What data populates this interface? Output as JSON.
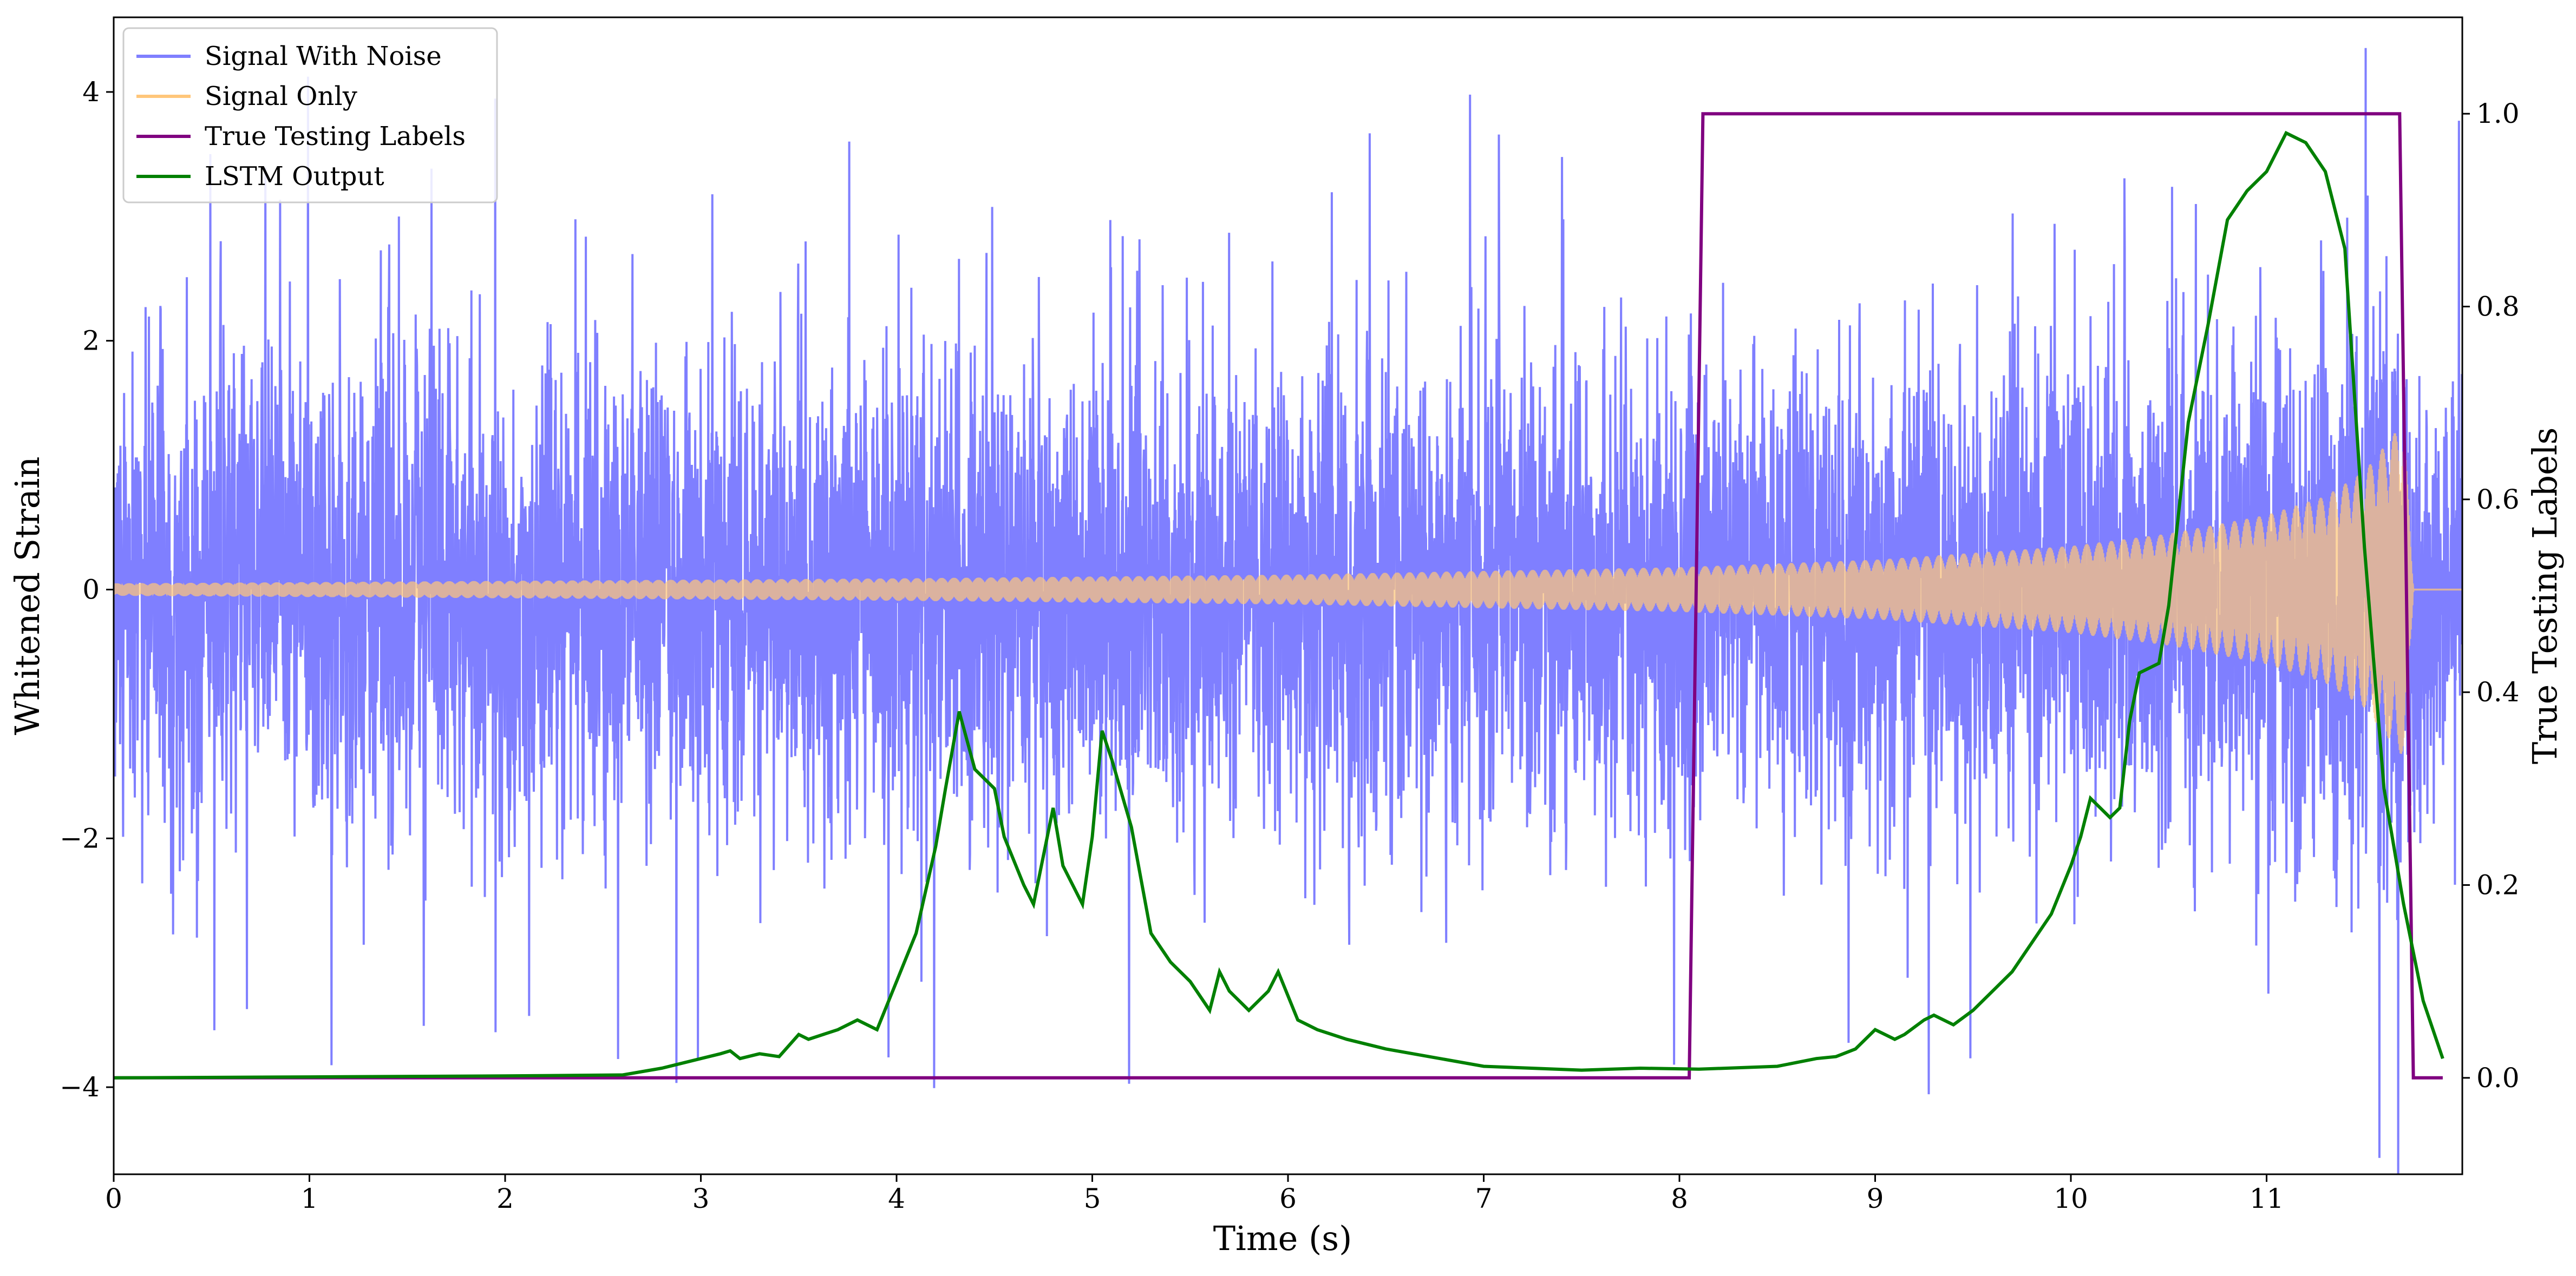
{
  "chart_data": {
    "type": "line",
    "xlabel": "Time (s)",
    "ylabel": "Whitened Strain",
    "ylabel_right": "True Testing Labels",
    "xlim": [
      0,
      12
    ],
    "ylim": [
      -4.7,
      4.6
    ],
    "ylim_right": [
      -0.1,
      1.1
    ],
    "x_ticks": [
      0,
      1,
      2,
      3,
      4,
      5,
      6,
      7,
      8,
      9,
      10,
      11
    ],
    "y_ticks": [
      -4,
      -2,
      0,
      2,
      4
    ],
    "y_tick_labels": [
      "−4",
      "−2",
      "0",
      "2",
      "4"
    ],
    "y_ticks_right": [
      0.0,
      0.2,
      0.4,
      0.6,
      0.8,
      1.0
    ],
    "y_tick_labels_right": [
      "0.0",
      "0.2",
      "0.4",
      "0.6",
      "0.8",
      "1.0"
    ],
    "legend_position": "upper-left",
    "grid": false,
    "series": [
      {
        "name": "Signal With Noise",
        "axis": "left",
        "color": "#7f7fff",
        "noise_std": 1.0,
        "peak_max": 4.2,
        "peak_min": -4.3,
        "x_range": [
          0,
          12
        ]
      },
      {
        "name": "Signal Only",
        "axis": "left",
        "color": "#ffc67a",
        "chirp_envelope": [
          [
            0,
            0.05
          ],
          [
            2,
            0.07
          ],
          [
            4,
            0.09
          ],
          [
            6,
            0.12
          ],
          [
            8,
            0.18
          ],
          [
            9,
            0.24
          ],
          [
            10,
            0.35
          ],
          [
            10.5,
            0.45
          ],
          [
            11,
            0.6
          ],
          [
            11.3,
            0.75
          ],
          [
            11.5,
            0.95
          ],
          [
            11.6,
            1.15
          ],
          [
            11.7,
            1.35
          ],
          [
            11.75,
            0.0
          ],
          [
            12,
            0.0
          ]
        ]
      },
      {
        "name": "True Testing Labels",
        "axis": "right",
        "color": "#800080",
        "x": [
          0,
          8.05,
          8.12,
          11.68,
          11.75,
          11.9
        ],
        "y": [
          0,
          0,
          1,
          1,
          0,
          0
        ]
      },
      {
        "name": "LSTM Output",
        "axis": "right",
        "color": "#008000",
        "x": [
          0,
          1,
          2,
          2.6,
          2.8,
          3.0,
          3.1,
          3.15,
          3.2,
          3.3,
          3.4,
          3.5,
          3.55,
          3.7,
          3.8,
          3.9,
          4.0,
          4.1,
          4.2,
          4.25,
          4.32,
          4.4,
          4.5,
          4.55,
          4.65,
          4.7,
          4.8,
          4.85,
          4.95,
          5.0,
          5.05,
          5.1,
          5.2,
          5.3,
          5.4,
          5.5,
          5.6,
          5.65,
          5.7,
          5.8,
          5.9,
          5.95,
          6.05,
          6.15,
          6.3,
          6.5,
          7.0,
          7.5,
          7.8,
          8.1,
          8.5,
          8.7,
          8.8,
          8.9,
          9.0,
          9.05,
          9.1,
          9.15,
          9.25,
          9.3,
          9.4,
          9.5,
          9.6,
          9.7,
          9.8,
          9.9,
          10.0,
          10.05,
          10.1,
          10.2,
          10.25,
          10.3,
          10.35,
          10.45,
          10.5,
          10.6,
          10.7,
          10.8,
          10.9,
          11.0,
          11.05,
          11.1,
          11.2,
          11.3,
          11.4,
          11.5,
          11.6,
          11.7,
          11.8,
          11.9
        ],
        "y": [
          0.0,
          0.001,
          0.002,
          0.003,
          0.01,
          0.02,
          0.025,
          0.028,
          0.02,
          0.025,
          0.022,
          0.045,
          0.04,
          0.05,
          0.06,
          0.05,
          0.1,
          0.15,
          0.24,
          0.3,
          0.38,
          0.32,
          0.3,
          0.25,
          0.2,
          0.18,
          0.28,
          0.22,
          0.18,
          0.25,
          0.36,
          0.33,
          0.26,
          0.15,
          0.12,
          0.1,
          0.07,
          0.11,
          0.09,
          0.07,
          0.09,
          0.11,
          0.06,
          0.05,
          0.04,
          0.03,
          0.012,
          0.008,
          0.01,
          0.009,
          0.012,
          0.02,
          0.022,
          0.03,
          0.05,
          0.045,
          0.04,
          0.045,
          0.06,
          0.065,
          0.055,
          0.07,
          0.09,
          0.11,
          0.14,
          0.17,
          0.22,
          0.25,
          0.29,
          0.27,
          0.28,
          0.37,
          0.42,
          0.43,
          0.49,
          0.68,
          0.78,
          0.89,
          0.92,
          0.94,
          0.96,
          0.98,
          0.97,
          0.94,
          0.86,
          0.55,
          0.3,
          0.18,
          0.08,
          0.02
        ]
      }
    ]
  }
}
